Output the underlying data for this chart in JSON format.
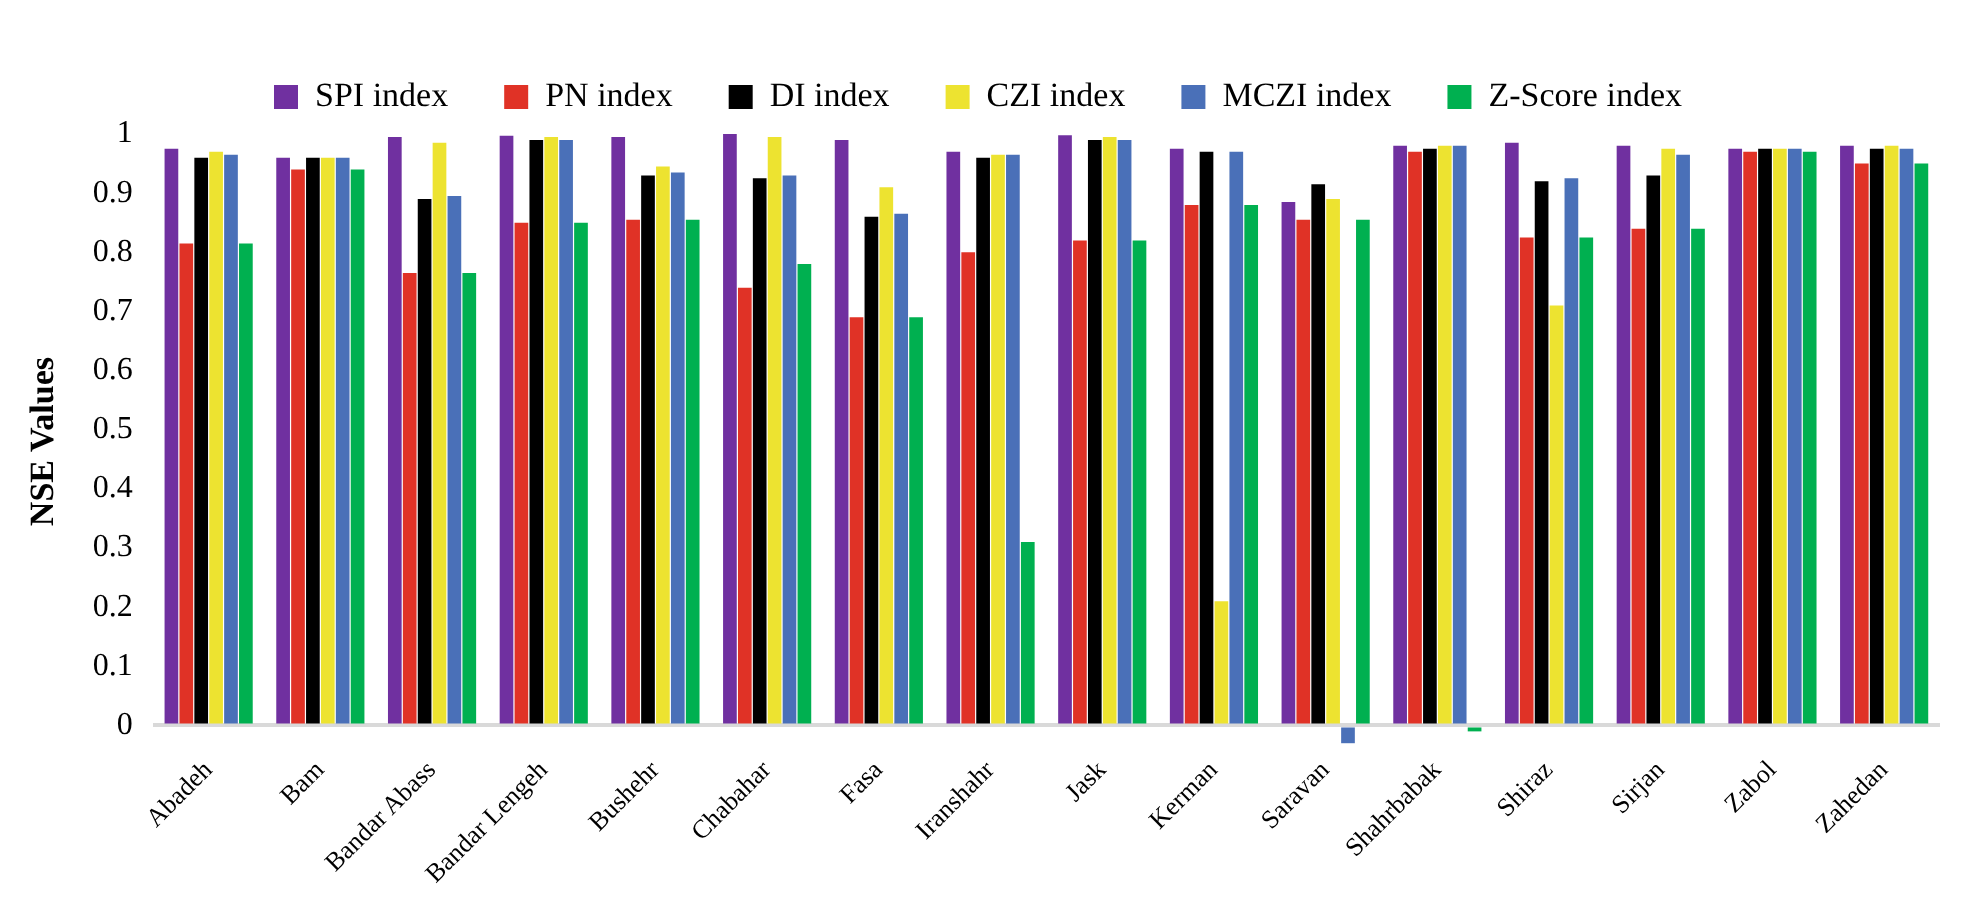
{
  "chart_data": {
    "type": "bar",
    "ylabel": "NSE Values",
    "categories": [
      "Abadeh",
      "Bam",
      "Bandar Abass",
      "Bandar Lengeh",
      "Bushehr",
      "Chabahar",
      "Fasa",
      "Iranshahr",
      "Jask",
      "Kerman",
      "Saravan",
      "Shahrbabak",
      "Shiraz",
      "Sirjan",
      "Zabol",
      "Zahedan"
    ],
    "series": [
      {
        "name": "SPI index",
        "color": "#7030a0",
        "values": [
          0.975,
          0.96,
          0.995,
          0.997,
          0.995,
          1.0,
          0.99,
          0.97,
          0.998,
          0.975,
          0.885,
          0.98,
          0.985,
          0.98,
          0.975,
          0.98
        ]
      },
      {
        "name": "PN index",
        "color": "#e03226",
        "values": [
          0.815,
          0.94,
          0.765,
          0.85,
          0.855,
          0.74,
          0.69,
          0.8,
          0.82,
          0.88,
          0.855,
          0.97,
          0.825,
          0.84,
          0.97,
          0.95
        ]
      },
      {
        "name": "DI index",
        "color": "#000000",
        "values": [
          0.96,
          0.96,
          0.89,
          0.99,
          0.93,
          0.925,
          0.86,
          0.96,
          0.99,
          0.97,
          0.915,
          0.975,
          0.92,
          0.93,
          0.975,
          0.975
        ]
      },
      {
        "name": "CZI index",
        "color": "#ede330",
        "values": [
          0.97,
          0.96,
          0.985,
          0.995,
          0.945,
          0.995,
          0.91,
          0.965,
          0.995,
          0.21,
          0.89,
          0.98,
          0.71,
          0.975,
          0.975,
          0.98
        ]
      },
      {
        "name": "MCZI index",
        "color": "#4a70b8",
        "values": [
          0.965,
          0.96,
          0.895,
          0.99,
          0.935,
          0.93,
          0.865,
          0.965,
          0.99,
          0.97,
          -0.03,
          0.98,
          0.925,
          0.965,
          0.975,
          0.975
        ]
      },
      {
        "name": "Z-Score index",
        "color": "#00b050",
        "values": [
          0.815,
          0.94,
          0.765,
          0.85,
          0.855,
          0.78,
          0.69,
          0.31,
          0.82,
          0.88,
          0.855,
          -0.01,
          0.825,
          0.84,
          0.97,
          0.95
        ]
      }
    ],
    "ylim": [
      -0.04,
      1
    ],
    "yticks": [
      0,
      0.1,
      0.2,
      0.3,
      0.4,
      0.5,
      0.6,
      0.7,
      0.8,
      0.9,
      1
    ],
    "grid": false,
    "legend": "top"
  }
}
